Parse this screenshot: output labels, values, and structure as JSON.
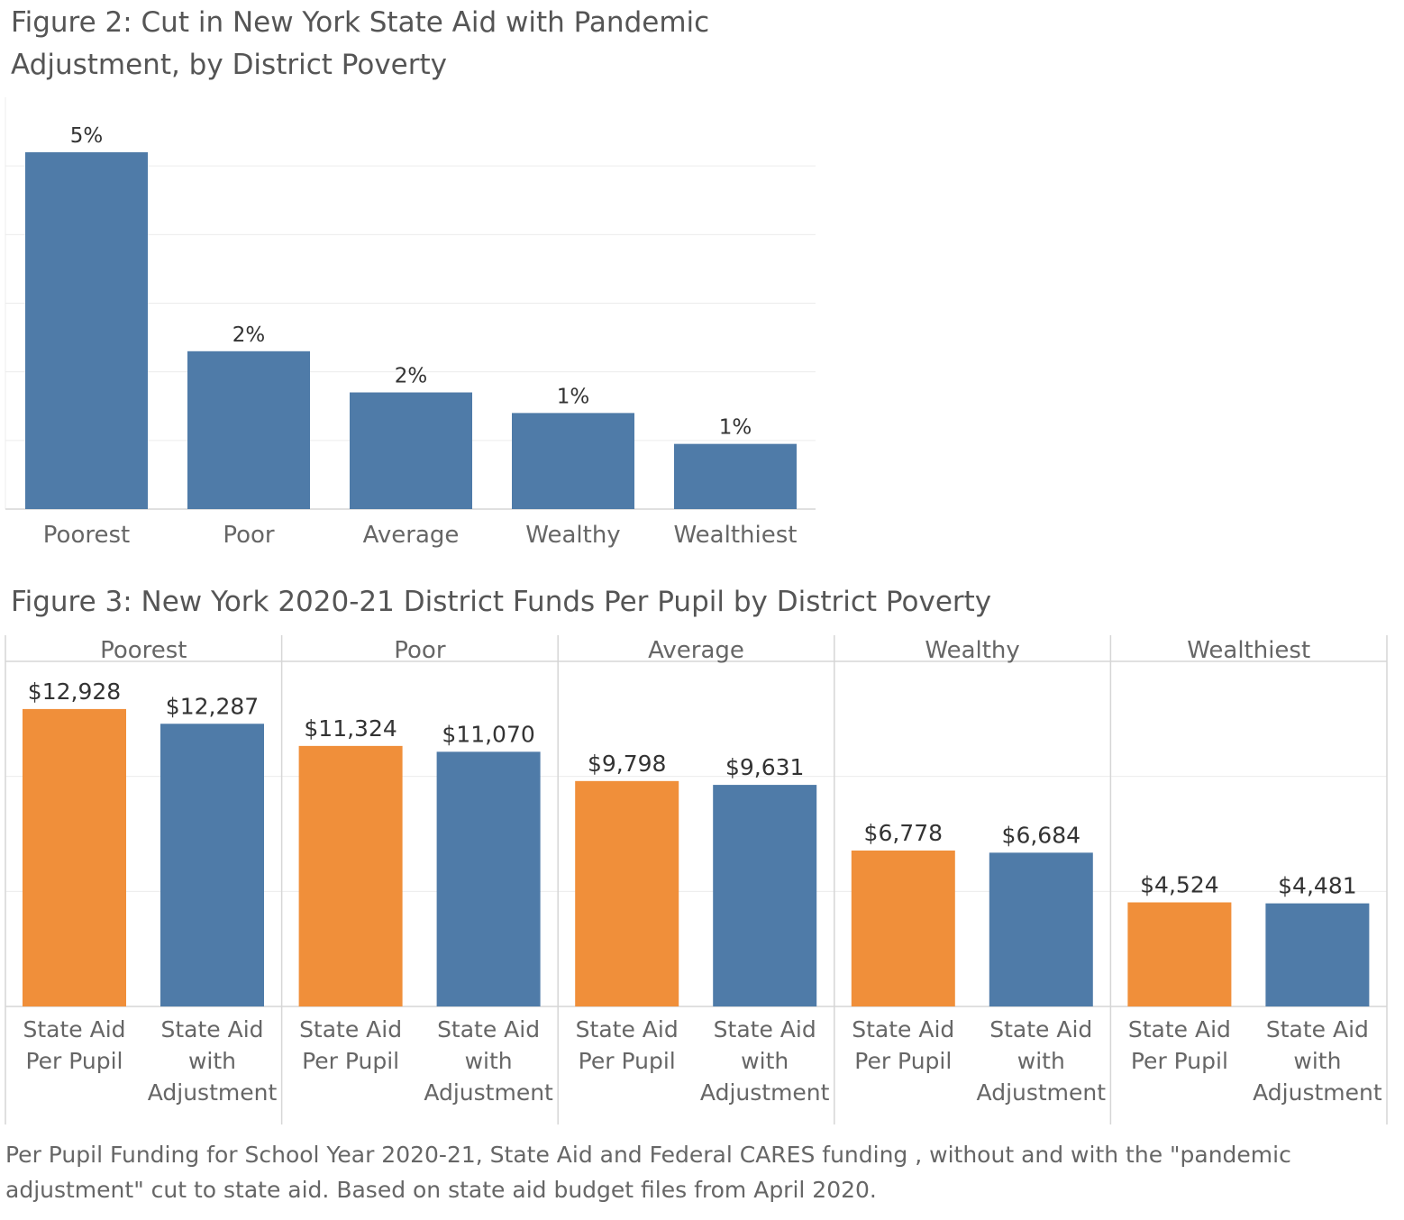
{
  "colors": {
    "orange": "#F08F3A",
    "blue": "#4F7BA8",
    "grid": "#ECECEC",
    "border": "#D6D6D6",
    "text_dark": "#333333",
    "text_muted": "#666666"
  },
  "chart_data": [
    {
      "type": "bar",
      "title": "Figure 2: Cut in New York State Aid with Pandemic Adjustment, by District Poverty",
      "categories": [
        "Poorest",
        "Poor",
        "Average",
        "Wealthy",
        "Wealthiest"
      ],
      "values": [
        5.2,
        2.3,
        1.7,
        1.4,
        0.95
      ],
      "value_labels": [
        "5%",
        "2%",
        "2%",
        "1%",
        "1%"
      ],
      "ylim": [
        0,
        6
      ],
      "grid": true,
      "xlabel": "",
      "ylabel": ""
    },
    {
      "type": "bar",
      "title": "Figure 3: New York 2020-21 District Funds Per Pupil by District Poverty",
      "groups": [
        "Poorest",
        "Poor",
        "Average",
        "Wealthy",
        "Wealthiest"
      ],
      "series": [
        {
          "label_lines": [
            "State Aid",
            "Per Pupil"
          ],
          "color": "#F08F3A",
          "values": [
            12928,
            11324,
            9798,
            6778,
            4524
          ],
          "value_labels": [
            "$12,928",
            "$11,324",
            "$9,798",
            "$6,778",
            "$4,524"
          ]
        },
        {
          "label_lines": [
            "State Aid",
            "with",
            "Adjustment"
          ],
          "color": "#4F7BA8",
          "values": [
            12287,
            11070,
            9631,
            6684,
            4481
          ],
          "value_labels": [
            "$12,287",
            "$11,070",
            "$9,631",
            "$6,684",
            "$4,481"
          ]
        }
      ],
      "ylim": [
        0,
        15000
      ],
      "grid": true,
      "xlabel": "",
      "ylabel": ""
    }
  ],
  "caption": "Per Pupil Funding for School Year 2020-21, State Aid and  Federal CARES funding , without and with the \"pandemic adjustment\" cut to state aid. Based on state aid budget files from April 2020."
}
